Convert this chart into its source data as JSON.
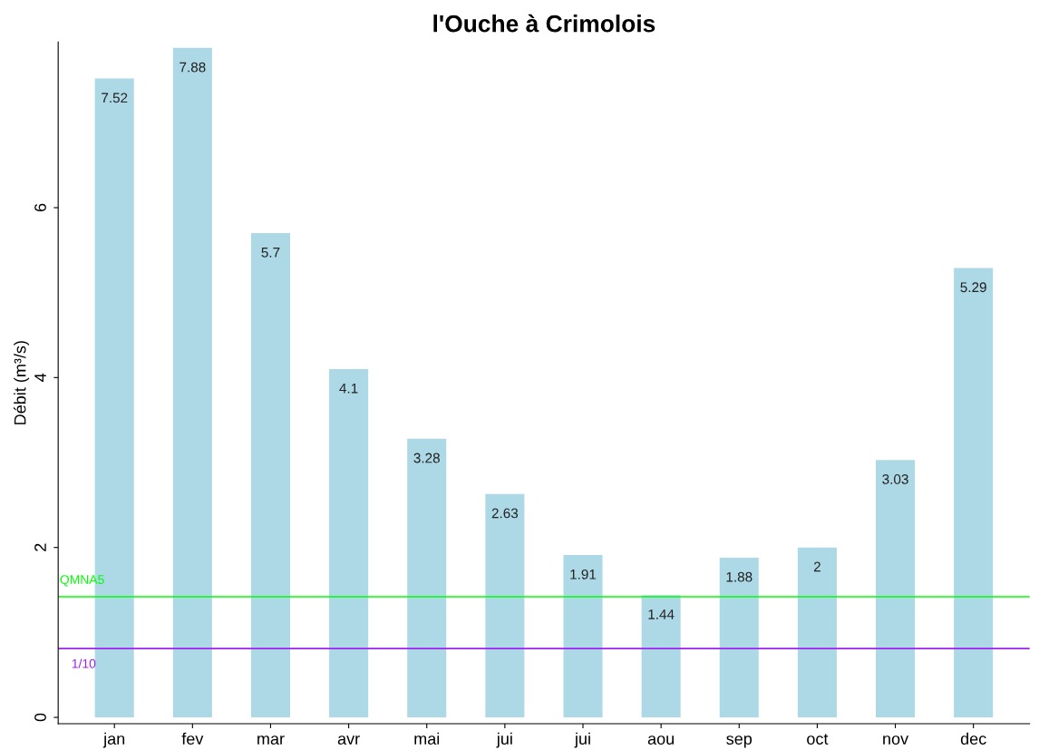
{
  "chart_data": {
    "type": "bar",
    "title": "l'Ouche à Crimolois",
    "ylabel": "Débit (m³/s)",
    "categories": [
      "jan",
      "fev",
      "mar",
      "avr",
      "mai",
      "jui",
      "jui",
      "aou",
      "sep",
      "oct",
      "nov",
      "dec"
    ],
    "values": [
      7.52,
      7.88,
      5.7,
      4.1,
      3.28,
      2.63,
      1.91,
      1.44,
      1.88,
      2,
      3.03,
      5.29
    ],
    "color": "#add8e6",
    "ylim": [
      -0.075,
      7.95
    ],
    "yticks": [
      0,
      2,
      4,
      6
    ],
    "ref_lines": [
      {
        "axis": "y",
        "value": 1.42,
        "label": "QMNA5",
        "color": "#00ff00"
      },
      {
        "axis": "y",
        "value": 0.81,
        "label": "1/10",
        "color": "#a020f0"
      }
    ],
    "data_labels": true,
    "grid": false,
    "legend": false
  }
}
